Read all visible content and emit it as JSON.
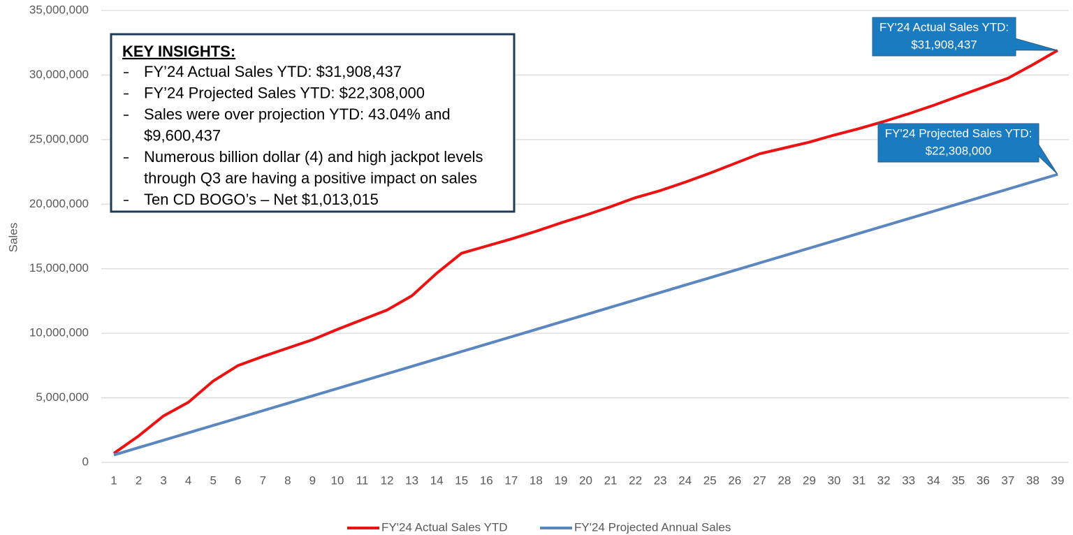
{
  "chart_data": {
    "type": "line",
    "ylabel": "Sales",
    "x": [
      1,
      2,
      3,
      4,
      5,
      6,
      7,
      8,
      9,
      10,
      11,
      12,
      13,
      14,
      15,
      16,
      17,
      18,
      19,
      20,
      21,
      22,
      23,
      24,
      25,
      26,
      27,
      28,
      29,
      30,
      31,
      32,
      33,
      34,
      35,
      36,
      37,
      38,
      39
    ],
    "xlim": [
      1,
      39
    ],
    "series": [
      {
        "name": "FY'24 Actual Sales YTD",
        "color": "#ee1111",
        "values": [
          700000,
          2050000,
          3600000,
          4650000,
          6300000,
          7500000,
          8200000,
          8850000,
          9500000,
          10300000,
          11050000,
          11800000,
          12900000,
          14650000,
          16200000,
          16750000,
          17300000,
          17900000,
          18550000,
          19150000,
          19800000,
          20500000,
          21050000,
          21700000,
          22400000,
          23150000,
          23900000,
          24350000,
          24800000,
          25350000,
          25850000,
          26400000,
          27000000,
          27650000,
          28350000,
          29050000,
          29750000,
          30800000,
          31908437
        ]
      },
      {
        "name": "FY'24 Projected Annual Sales",
        "color": "#5b86c0",
        "values": [
          572000,
          1144000,
          1716000,
          2288000,
          2860000,
          3432000,
          4004000,
          4576000,
          5148000,
          5720000,
          6292000,
          6864000,
          7436000,
          8008000,
          8580000,
          9152000,
          9724000,
          10296000,
          10868000,
          11440000,
          12012000,
          12584000,
          13156000,
          13728000,
          14300000,
          14872000,
          15444000,
          16016000,
          16588000,
          17160000,
          17732000,
          18304000,
          18876000,
          19448000,
          20020000,
          20592000,
          21164000,
          21736000,
          22308000
        ]
      }
    ],
    "ylim": [
      0,
      35000000
    ],
    "yticks": [
      0,
      {
        "value": 5000000,
        "label": "5,000,000"
      },
      {
        "value": 10000000,
        "label": "10,000,000"
      },
      {
        "value": 15000000,
        "label": "15,000,000"
      },
      {
        "value": 20000000,
        "label": "20,000,000"
      },
      {
        "value": 25000000,
        "label": "25,000,000"
      },
      {
        "value": 30000000,
        "label": "30,000,000"
      },
      {
        "value": 35000000,
        "label": "35,000,000"
      }
    ],
    "grid": true,
    "legend": "bottom",
    "annotations": [
      {
        "lines": [
          "FY'24 Actual Sales YTD:",
          "$31,908,437"
        ],
        "color": "#1b7bc0"
      },
      {
        "lines": [
          "FY'24 Projected Sales YTD:",
          "$22,308,000"
        ],
        "color": "#1b7bc0"
      }
    ],
    "insights": {
      "heading": "KEY INSIGHTS:",
      "items": [
        {
          "lines": [
            "FY’24 Actual Sales YTD: $31,908,437"
          ]
        },
        {
          "lines": [
            "FY’24 Projected Sales YTD: $22,308,000"
          ]
        },
        {
          "lines": [
            "Sales were over projection YTD: 43.04% and",
            "$9,600,437"
          ]
        },
        {
          "lines": [
            "Numerous billion dollar (4) and high jackpot levels",
            "through Q3 are having a positive impact on sales"
          ]
        },
        {
          "lines": [
            "Ten CD BOGO’s – Net $1,013,015"
          ]
        }
      ]
    }
  }
}
